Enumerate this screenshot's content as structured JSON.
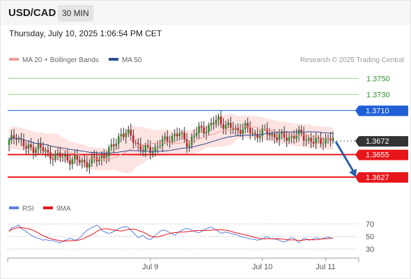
{
  "header": {
    "symbol": "USD/CAD",
    "timeframe": "30 MIN",
    "datetime": "Thursday, July 10, 2025 1:06:54 PM CET"
  },
  "credit": "Research © 2025 Trading Central",
  "colors": {
    "green_level": "#9bd37a",
    "blue_level": "#1f5fd6",
    "red_level": "#e8161a",
    "current_tag": "#333333",
    "candle_up": "#2f8a2f",
    "candle_down": "#c2232b",
    "bollinger_fill": "#fde3e1",
    "ma20": "#f29a96",
    "ma50": "#2e4d8f",
    "rsi": "#5b7fe0",
    "rsi_ma": "#e8161a",
    "arrow": "#2e5ea8"
  },
  "chart_data": [
    {
      "type": "candlestick",
      "ylim": [
        1.36,
        1.3765
      ],
      "legend": [
        {
          "name": "MA 20 + Bollinger Bands",
          "icon": "ma20-legend-icon"
        },
        {
          "name": "MA 50",
          "icon": "ma50-legend-icon"
        }
      ],
      "x_ticks": [
        {
          "label": "Jul 9",
          "index": 58
        },
        {
          "label": "Jul 10",
          "index": 104
        },
        {
          "label": "Jul 11",
          "index": 130
        }
      ],
      "levels": [
        {
          "label": "1.3750",
          "value": 1.375,
          "kind": "target-green"
        },
        {
          "label": "1.3730",
          "value": 1.373,
          "kind": "target-green"
        },
        {
          "label": "1.3710",
          "value": 1.371,
          "kind": "resistance-blue"
        },
        {
          "label": "1.3672",
          "value": 1.3672,
          "kind": "current"
        },
        {
          "label": "1.3655",
          "value": 1.3655,
          "kind": "pivot-red"
        },
        {
          "label": "1.3627",
          "value": 1.3627,
          "kind": "support-red"
        }
      ],
      "forecast_arrow": {
        "from": 1.3672,
        "to": 1.3627,
        "direction": "down"
      },
      "anchors": [
        [
          0,
          1.367
        ],
        [
          3,
          1.368
        ],
        [
          7,
          1.3662
        ],
        [
          12,
          1.3665
        ],
        [
          16,
          1.3655
        ],
        [
          22,
          1.3652
        ],
        [
          27,
          1.3648
        ],
        [
          32,
          1.3645
        ],
        [
          37,
          1.365
        ],
        [
          42,
          1.3662
        ],
        [
          46,
          1.3682
        ],
        [
          50,
          1.3678
        ],
        [
          55,
          1.366
        ],
        [
          60,
          1.3663
        ],
        [
          66,
          1.3677
        ],
        [
          70,
          1.368
        ],
        [
          74,
          1.3669
        ],
        [
          78,
          1.3687
        ],
        [
          82,
          1.3688
        ],
        [
          86,
          1.37
        ],
        [
          89,
          1.369
        ],
        [
          93,
          1.3686
        ],
        [
          97,
          1.3688
        ],
        [
          101,
          1.368
        ],
        [
          106,
          1.3683
        ],
        [
          110,
          1.3677
        ],
        [
          115,
          1.3677
        ],
        [
          120,
          1.368
        ],
        [
          125,
          1.367
        ],
        [
          129,
          1.3674
        ],
        [
          133,
          1.3674
        ]
      ],
      "candle_count": 134
    },
    {
      "type": "line",
      "name": "rsi-panel",
      "legend": [
        {
          "name": "RSI",
          "icon": "rsi-legend-icon"
        },
        {
          "name": "9MA",
          "icon": "rsi-ma-legend-icon"
        }
      ],
      "ylim": [
        20,
        80
      ],
      "y_ticks": [
        70,
        50,
        30
      ],
      "rsi": [
        58,
        64,
        65,
        66,
        68,
        63,
        60,
        58,
        55,
        52,
        50,
        48,
        47,
        46,
        44,
        45,
        44,
        43,
        44,
        42,
        41,
        40,
        42,
        44,
        45,
        47,
        46,
        44,
        45,
        48,
        52,
        56,
        60,
        62,
        64,
        66,
        68,
        66,
        60,
        58,
        56,
        55,
        56,
        58,
        60,
        62,
        64,
        65,
        66,
        64,
        60,
        56,
        52,
        48,
        50,
        52,
        48,
        46,
        45,
        48,
        52,
        55,
        58,
        60,
        60,
        58,
        56,
        54,
        52,
        55,
        58,
        60,
        62,
        63,
        62,
        60,
        58,
        57,
        56,
        58,
        60,
        62,
        64,
        65,
        63,
        60,
        58,
        55,
        56,
        57,
        56,
        55,
        54,
        53,
        52,
        50,
        49,
        48,
        47,
        46,
        46,
        45,
        44,
        45,
        46,
        48,
        50,
        47,
        46,
        46,
        45,
        44,
        42,
        41,
        43,
        46,
        48,
        47,
        43,
        40,
        44,
        47,
        46,
        44,
        45,
        46,
        48,
        47,
        46,
        47,
        48,
        49,
        48,
        47
      ]
    }
  ]
}
